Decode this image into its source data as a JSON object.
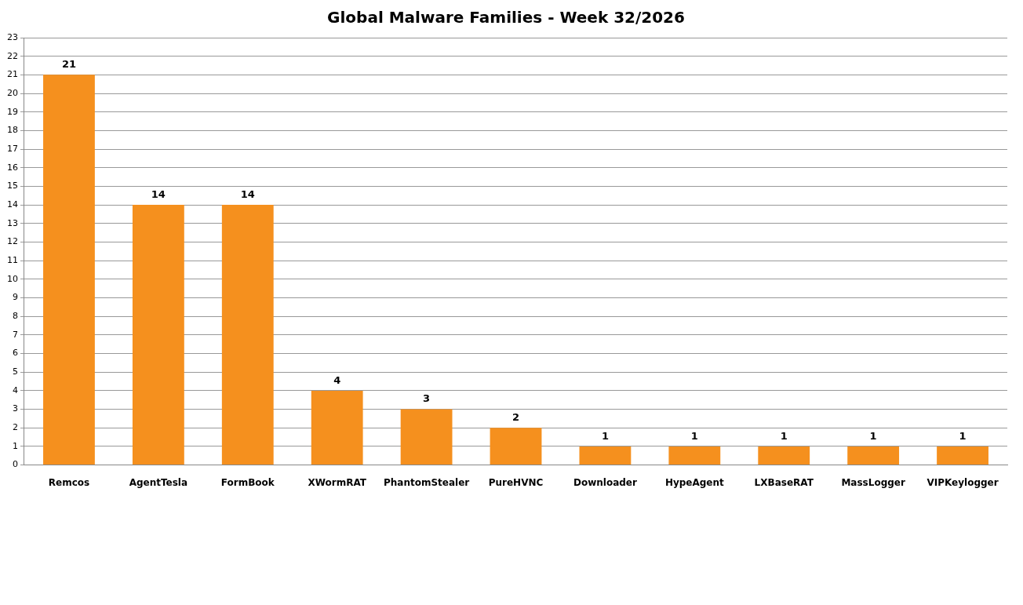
{
  "chart_data": {
    "type": "bar",
    "title": "Global Malware Families - Week 32/2026",
    "categories": [
      "Remcos",
      "AgentTesla",
      "FormBook",
      "XWormRAT",
      "PhantomStealer",
      "PureHVNC",
      "Downloader",
      "HypeAgent",
      "LXBaseRAT",
      "MassLogger",
      "VIPKeylogger"
    ],
    "values": [
      21,
      14,
      14,
      4,
      3,
      2,
      1,
      1,
      1,
      1,
      1
    ],
    "color": "#f5901e",
    "ylim": [
      0,
      23
    ],
    "yticks": [
      0,
      1,
      2,
      3,
      4,
      5,
      6,
      7,
      8,
      9,
      10,
      11,
      12,
      13,
      14,
      15,
      16,
      17,
      18,
      19,
      20,
      21,
      22,
      23
    ],
    "grid": "y",
    "legend": false,
    "data_labels": true
  }
}
